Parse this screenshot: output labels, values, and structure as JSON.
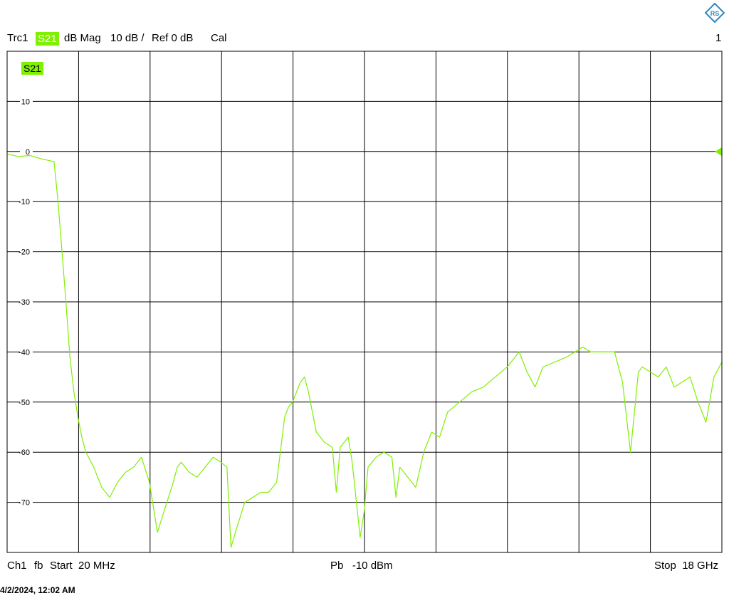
{
  "header": {
    "trace": "Trc1",
    "measurement": "S21",
    "format": "dB Mag",
    "scale": "10 dB /",
    "reference": "Ref 0 dB",
    "cal": "Cal",
    "channel_number": "1"
  },
  "footer": {
    "channel": "Ch1",
    "fb": "fb",
    "start": "Start  20 MHz",
    "power": "Pb   -10 dBm",
    "stop": "Stop  18 GHz"
  },
  "timestamp": "4/2/2024, 12:02 AM",
  "logo": {
    "icon": "rohde-schwarz-logo-icon",
    "text": "RS"
  },
  "colors": {
    "trace": "#7ff000",
    "badge_text": "#ffffff",
    "grid": "#000000",
    "logo": "#2e86c1"
  },
  "chart_data": {
    "type": "line",
    "title": "",
    "trace_label": "S21",
    "xlabel": "",
    "ylabel": "",
    "x_unit": "GHz",
    "y_unit": "dB",
    "xlim": [
      0.02,
      18
    ],
    "ylim": [
      -80,
      20
    ],
    "x_divisions": 10,
    "y_ticks": [
      10,
      0,
      -10,
      -20,
      -30,
      -40,
      -50,
      -60,
      -70
    ],
    "y_tick_labels": [
      "10",
      "0",
      "-10",
      "-20",
      "-30",
      "-40",
      "-50",
      "-60",
      "-70"
    ],
    "grid": true,
    "reference_level": 0,
    "series": [
      {
        "name": "S21",
        "x": [
          0.02,
          0.3,
          0.6,
          0.9,
          1.2,
          1.3,
          1.4,
          1.5,
          1.6,
          1.7,
          1.8,
          1.9,
          2.0,
          2.2,
          2.4,
          2.6,
          2.8,
          3.0,
          3.2,
          3.4,
          3.6,
          3.8,
          4.0,
          4.2,
          4.3,
          4.4,
          4.6,
          4.8,
          5.0,
          5.2,
          5.4,
          5.55,
          5.65,
          5.8,
          6.0,
          6.2,
          6.4,
          6.6,
          6.8,
          7.0,
          7.1,
          7.2,
          7.4,
          7.5,
          7.6,
          7.7,
          7.8,
          8.0,
          8.2,
          8.3,
          8.4,
          8.6,
          8.7,
          8.9,
          9.0,
          9.1,
          9.3,
          9.5,
          9.7,
          9.8,
          9.9,
          10.1,
          10.3,
          10.5,
          10.7,
          10.9,
          11.1,
          11.4,
          11.7,
          12.0,
          12.3,
          12.6,
          12.9,
          13.1,
          13.3,
          13.5,
          13.8,
          14.1,
          14.3,
          14.5,
          14.7,
          15.0,
          15.3,
          15.5,
          15.7,
          15.8,
          15.9,
          16.0,
          16.2,
          16.4,
          16.6,
          16.8,
          17.0,
          17.2,
          17.4,
          17.6,
          17.8,
          18.0
        ],
        "y": [
          -0.5,
          -1,
          -0.8,
          -1.5,
          -2,
          -10,
          -20,
          -30,
          -41,
          -48,
          -53,
          -57,
          -60,
          -63,
          -67,
          -69,
          -66,
          -64,
          -63,
          -61,
          -66,
          -76,
          -71,
          -66,
          -63,
          -62,
          -64,
          -65,
          -63,
          -61,
          -62,
          -63,
          -79,
          -75,
          -70,
          -69,
          -68,
          -68,
          -66,
          -53,
          -51,
          -50,
          -46,
          -45,
          -48,
          -52,
          -56,
          -58,
          -59,
          -68,
          -59,
          -57,
          -62,
          -77,
          -72,
          -63,
          -61,
          -60,
          -61,
          -69,
          -63,
          -65,
          -67,
          -60,
          -56,
          -57,
          -52,
          -50,
          -48,
          -47,
          -45,
          -43,
          -40,
          -44,
          -47,
          -43,
          -42,
          -41,
          -40,
          -39,
          -40,
          -40,
          -40,
          -46,
          -60,
          -52,
          -44,
          -43,
          -44,
          -45,
          -43,
          -47,
          -46,
          -45,
          -50,
          -54,
          -45,
          -42
        ]
      }
    ]
  }
}
